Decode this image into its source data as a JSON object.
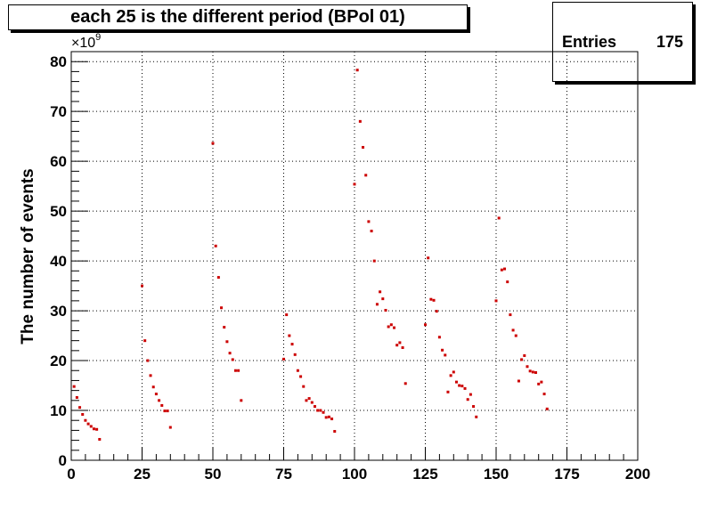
{
  "title": "each 25 is the different period (BPol 01)",
  "stats": {
    "label": "Entries",
    "value": "175"
  },
  "ylabel": "The number of events",
  "exponent": {
    "base": "×10",
    "power": "9"
  },
  "chart_data": {
    "type": "scatter",
    "title": "each 25 is the different period (BPol 01)",
    "xlabel": "",
    "ylabel": "The number of events",
    "y_multiplier": "1e9",
    "xlim": [
      0,
      200
    ],
    "ylim": [
      0,
      82
    ],
    "grid": true,
    "x_ticks": [
      0,
      25,
      50,
      75,
      100,
      125,
      150,
      175,
      200
    ],
    "y_ticks": [
      0,
      10,
      20,
      30,
      40,
      50,
      60,
      70,
      80
    ],
    "color": "#cc0000",
    "points": [
      [
        1,
        14.8
      ],
      [
        2,
        12.6
      ],
      [
        3,
        10.6
      ],
      [
        4,
        9.2
      ],
      [
        5,
        8.0
      ],
      [
        6,
        7.3
      ],
      [
        7,
        6.8
      ],
      [
        8,
        6.3
      ],
      [
        9,
        6.2
      ],
      [
        10,
        4.2
      ],
      [
        25,
        35.0
      ],
      [
        26,
        24.0
      ],
      [
        27,
        20.0
      ],
      [
        28,
        17.0
      ],
      [
        29,
        14.7
      ],
      [
        30,
        13.3
      ],
      [
        31,
        12.0
      ],
      [
        32,
        11.0
      ],
      [
        33,
        9.9
      ],
      [
        34,
        9.9
      ],
      [
        35,
        6.6
      ],
      [
        50,
        63.6
      ],
      [
        51,
        43.0
      ],
      [
        52,
        36.7
      ],
      [
        53,
        30.6
      ],
      [
        54,
        26.7
      ],
      [
        55,
        23.8
      ],
      [
        56,
        21.5
      ],
      [
        57,
        20.2
      ],
      [
        58,
        18.0
      ],
      [
        59,
        18.0
      ],
      [
        60,
        12.0
      ],
      [
        75,
        20.3
      ],
      [
        76,
        29.2
      ],
      [
        77,
        25.0
      ],
      [
        78,
        23.3
      ],
      [
        79,
        21.2
      ],
      [
        80,
        18.0
      ],
      [
        81,
        16.8
      ],
      [
        82,
        14.8
      ],
      [
        83,
        12.0
      ],
      [
        84,
        12.4
      ],
      [
        85,
        11.6
      ],
      [
        86,
        10.8
      ],
      [
        87,
        10.0
      ],
      [
        88,
        10.0
      ],
      [
        89,
        9.6
      ],
      [
        90,
        8.6
      ],
      [
        91,
        8.7
      ],
      [
        92,
        8.3
      ],
      [
        93,
        5.8
      ],
      [
        100,
        55.4
      ],
      [
        101,
        78.3
      ],
      [
        102,
        68.0
      ],
      [
        103,
        62.8
      ],
      [
        104,
        57.2
      ],
      [
        105,
        47.9
      ],
      [
        106,
        46.0
      ],
      [
        107,
        40.0
      ],
      [
        108,
        31.3
      ],
      [
        109,
        33.8
      ],
      [
        110,
        32.4
      ],
      [
        111,
        30.1
      ],
      [
        112,
        26.8
      ],
      [
        113,
        27.2
      ],
      [
        114,
        26.6
      ],
      [
        115,
        23.1
      ],
      [
        116,
        23.6
      ],
      [
        117,
        22.6
      ],
      [
        118,
        15.4
      ],
      [
        125,
        27.2
      ],
      [
        126,
        40.6
      ],
      [
        127,
        32.3
      ],
      [
        128,
        32.1
      ],
      [
        129,
        29.9
      ],
      [
        130,
        24.7
      ],
      [
        131,
        22.1
      ],
      [
        132,
        21.1
      ],
      [
        133,
        13.7
      ],
      [
        134,
        17.0
      ],
      [
        135,
        17.7
      ],
      [
        136,
        15.7
      ],
      [
        137,
        15.0
      ],
      [
        138,
        14.9
      ],
      [
        139,
        14.4
      ],
      [
        140,
        12.2
      ],
      [
        141,
        13.2
      ],
      [
        142,
        10.8
      ],
      [
        143,
        8.7
      ],
      [
        150,
        32.0
      ],
      [
        151,
        48.6
      ],
      [
        152,
        38.2
      ],
      [
        153,
        38.4
      ],
      [
        154,
        35.8
      ],
      [
        155,
        29.2
      ],
      [
        156,
        26.1
      ],
      [
        157,
        25.0
      ],
      [
        158,
        15.9
      ],
      [
        159,
        20.2
      ],
      [
        160,
        21.0
      ],
      [
        161,
        18.8
      ],
      [
        162,
        17.9
      ],
      [
        163,
        17.7
      ],
      [
        164,
        17.6
      ],
      [
        165,
        15.3
      ],
      [
        166,
        15.7
      ],
      [
        167,
        13.3
      ],
      [
        168,
        10.3
      ]
    ]
  }
}
